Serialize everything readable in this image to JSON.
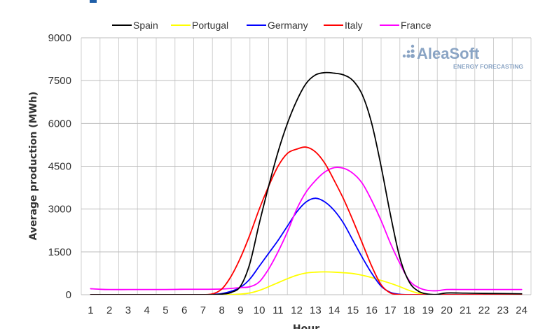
{
  "chart_data": {
    "type": "line",
    "xlabel": "Hour",
    "ylabel": "Average production (MWh)",
    "ylim": [
      0,
      9000
    ],
    "yticks": [
      0,
      1500,
      3000,
      4500,
      6000,
      7500,
      9000
    ],
    "categories": [
      1,
      2,
      3,
      4,
      5,
      6,
      7,
      8,
      9,
      10,
      11,
      12,
      13,
      14,
      15,
      16,
      17,
      18,
      19,
      20,
      21,
      22,
      23,
      24
    ],
    "grid": "on",
    "legend_placement": "top",
    "logo": {
      "name": "AleaSoft",
      "tagline": "ENERGY FORECASTING",
      "color": "#8aa4c4"
    },
    "series": [
      {
        "name": "Spain",
        "color": "#000000",
        "x": [
          1,
          2,
          3,
          4,
          5,
          6,
          7,
          7.5,
          8,
          8.5,
          9,
          9.5,
          10,
          10.5,
          11,
          11.5,
          12,
          12.5,
          13,
          13.5,
          14,
          14.5,
          15,
          15.5,
          16,
          16.5,
          17,
          17.5,
          18,
          18.5,
          19,
          19.5,
          20,
          21,
          22,
          23,
          24
        ],
        "values": [
          0,
          0,
          0,
          0,
          0,
          0,
          0,
          0,
          20,
          80,
          300,
          1100,
          2500,
          3800,
          5000,
          6000,
          6800,
          7400,
          7700,
          7780,
          7760,
          7700,
          7500,
          7000,
          6000,
          4500,
          2800,
          1300,
          450,
          120,
          20,
          10,
          60,
          55,
          45,
          40,
          30
        ]
      },
      {
        "name": "Portugal",
        "color": "#ffff00",
        "x": [
          1,
          2,
          3,
          4,
          5,
          6,
          7,
          8,
          8.5,
          9,
          9.5,
          10,
          10.5,
          11,
          11.5,
          12,
          12.5,
          13,
          13.5,
          14,
          14.5,
          15,
          15.5,
          16,
          16.5,
          17,
          17.5,
          18,
          18.5,
          19,
          20,
          21,
          22,
          23,
          24
        ],
        "values": [
          0,
          0,
          0,
          0,
          0,
          0,
          0,
          0,
          5,
          20,
          60,
          150,
          280,
          420,
          560,
          680,
          760,
          790,
          800,
          790,
          770,
          740,
          680,
          600,
          500,
          400,
          280,
          150,
          50,
          10,
          0,
          0,
          0,
          0,
          0
        ]
      },
      {
        "name": "Germany",
        "color": "#0000ff",
        "x": [
          1,
          2,
          3,
          4,
          5,
          6,
          7,
          7.5,
          8,
          8.5,
          9,
          9.5,
          10,
          10.5,
          11,
          11.5,
          12,
          12.5,
          13,
          13.5,
          14,
          14.5,
          15,
          15.5,
          16,
          16.5,
          17,
          17.5,
          18,
          19,
          20,
          21,
          22,
          23,
          24
        ],
        "values": [
          0,
          0,
          0,
          0,
          0,
          0,
          0,
          10,
          40,
          120,
          260,
          550,
          1000,
          1450,
          1900,
          2400,
          2900,
          3250,
          3380,
          3250,
          2950,
          2500,
          1900,
          1300,
          750,
          300,
          80,
          15,
          0,
          0,
          0,
          0,
          0,
          0,
          0
        ]
      },
      {
        "name": "Italy",
        "color": "#ff0000",
        "x": [
          1,
          2,
          3,
          4,
          5,
          6,
          7,
          7.5,
          8,
          8.5,
          9,
          9.5,
          10,
          10.5,
          11,
          11.5,
          12,
          12.5,
          13,
          13.5,
          14,
          14.5,
          15,
          15.5,
          16,
          16.5,
          17,
          17.5,
          18,
          18.5,
          19,
          20,
          21,
          22,
          23,
          24
        ],
        "values": [
          0,
          0,
          0,
          0,
          0,
          0,
          0,
          30,
          200,
          650,
          1300,
          2100,
          3000,
          3800,
          4500,
          4950,
          5100,
          5170,
          5000,
          4600,
          4000,
          3350,
          2600,
          1800,
          1000,
          350,
          60,
          5,
          0,
          0,
          0,
          0,
          0,
          0,
          0,
          0
        ]
      },
      {
        "name": "France",
        "color": "#ff00ff",
        "x": [
          1,
          1.5,
          2,
          3,
          4,
          5,
          6,
          7,
          8,
          8.5,
          9,
          9.5,
          10,
          10.5,
          11,
          11.5,
          12,
          12.5,
          13,
          13.5,
          14,
          14.5,
          15,
          15.5,
          16,
          16.5,
          17,
          17.5,
          18,
          18.5,
          19,
          19.5,
          20,
          21,
          22,
          23,
          24
        ],
        "values": [
          210,
          190,
          180,
          180,
          180,
          180,
          190,
          190,
          200,
          220,
          250,
          280,
          450,
          900,
          1500,
          2200,
          3000,
          3600,
          4000,
          4300,
          4450,
          4430,
          4250,
          3900,
          3300,
          2600,
          1800,
          1100,
          500,
          250,
          150,
          140,
          180,
          180,
          180,
          180,
          180
        ]
      }
    ]
  }
}
